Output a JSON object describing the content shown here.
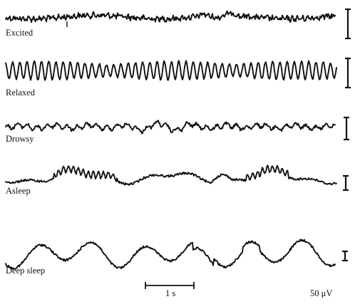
{
  "figure": {
    "traces": [
      {
        "label": "Excited",
        "pattern": "high-frequency, low-amplitude"
      },
      {
        "label": "Relaxed",
        "pattern": "rhythmic alpha, medium amplitude"
      },
      {
        "label": "Drowsy",
        "pattern": "mixed, low amplitude"
      },
      {
        "label": "Asleep",
        "pattern": "slower waves with bursts"
      },
      {
        "label": "Deep sleep",
        "pattern": "slow, high-amplitude waves"
      }
    ],
    "time_scale_label": "1 s",
    "voltage_scale_label": "50 μV"
  }
}
